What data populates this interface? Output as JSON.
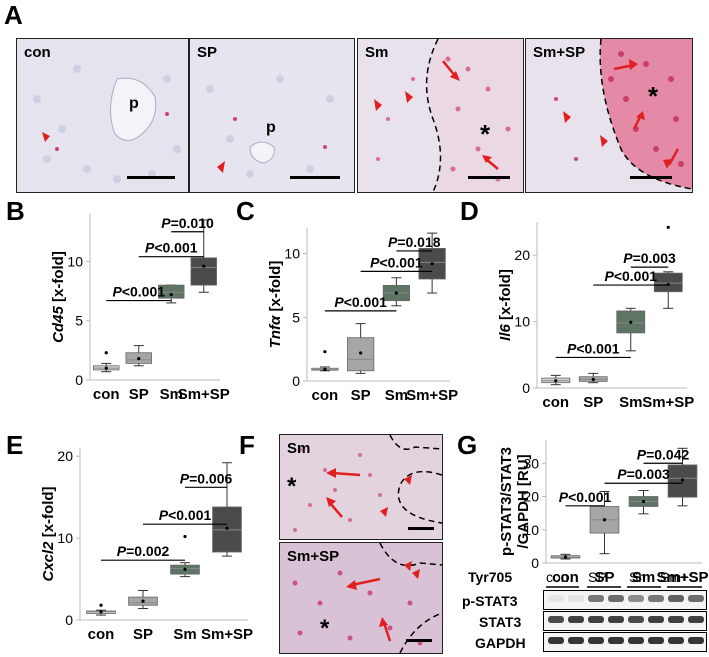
{
  "panel_letters": [
    "A",
    "B",
    "C",
    "D",
    "E",
    "F",
    "G"
  ],
  "panel_a": {
    "images": [
      {
        "label": "con",
        "inner_marks": [
          "p"
        ]
      },
      {
        "label": "SP",
        "inner_marks": [
          "p"
        ]
      },
      {
        "label": "Sm",
        "inner_marks": [
          "*"
        ]
      },
      {
        "label": "Sm+SP",
        "inner_marks": [
          "*"
        ]
      }
    ]
  },
  "panel_f": {
    "images": [
      {
        "label": "Sm",
        "inner_marks": [
          "*"
        ]
      },
      {
        "label": "Sm+SP",
        "inner_marks": [
          "*"
        ]
      }
    ]
  },
  "colors": {
    "box_con": "#d2d2d2",
    "box_sp": "#a6a6a6",
    "box_sm": "#5e7565",
    "box_smsp": "#4b4b4b",
    "arrow": "#e02020",
    "stain": "#d03060",
    "tissue": "#e6e4ef"
  },
  "chart_data": [
    {
      "panel": "B",
      "type": "box",
      "ylabel": "Cd45 [x-fold]",
      "ylim": [
        0,
        14
      ],
      "yticks": [
        0,
        5,
        10
      ],
      "categories": [
        "con",
        "SP",
        "Sm",
        "Sm+SP"
      ],
      "series": [
        {
          "category": "con",
          "min": 0.7,
          "q1": 0.85,
          "median": 1.0,
          "q3": 1.2,
          "max": 1.4,
          "mean": 1.0,
          "outliers": [
            2.3
          ]
        },
        {
          "category": "SP",
          "min": 1.2,
          "q1": 1.4,
          "median": 1.7,
          "q3": 2.3,
          "max": 2.9,
          "mean": 1.8,
          "outliers": []
        },
        {
          "category": "Sm",
          "min": 6.5,
          "q1": 6.9,
          "median": 7.4,
          "q3": 8.0,
          "max": 8.0,
          "mean": 7.2,
          "outliers": []
        },
        {
          "category": "Sm+SP",
          "min": 7.4,
          "q1": 8.0,
          "median": 9.5,
          "q3": 10.3,
          "max": 13.5,
          "mean": 9.6,
          "outliers": []
        }
      ],
      "comparisons": [
        {
          "text": "P=0.010",
          "from": 2,
          "to": 3,
          "y": 12.5
        },
        {
          "text": "P<0.001",
          "from": 1,
          "to": 3,
          "y": 10.4
        },
        {
          "text": "P<0.001",
          "from": 0,
          "to": 2,
          "y": 6.7
        }
      ]
    },
    {
      "panel": "C",
      "type": "box",
      "ylabel": "Tnfα [x-fold]",
      "ylim": [
        0,
        12
      ],
      "yticks": [
        0,
        5,
        10
      ],
      "categories": [
        "con",
        "SP",
        "Sm",
        "Sm+SP"
      ],
      "series": [
        {
          "category": "con",
          "min": 0.8,
          "q1": 0.85,
          "median": 0.9,
          "q3": 1.0,
          "max": 1.1,
          "mean": 0.9,
          "outliers": [
            2.3
          ]
        },
        {
          "category": "SP",
          "min": 0.6,
          "q1": 0.8,
          "median": 1.7,
          "q3": 3.4,
          "max": 4.5,
          "mean": 2.2,
          "outliers": []
        },
        {
          "category": "Sm",
          "min": 5.9,
          "q1": 6.3,
          "median": 6.9,
          "q3": 7.5,
          "max": 8.1,
          "mean": 6.9,
          "outliers": []
        },
        {
          "category": "Sm+SP",
          "min": 6.9,
          "q1": 8.0,
          "median": 9.3,
          "q3": 10.4,
          "max": 11.6,
          "mean": 9.2,
          "outliers": []
        }
      ],
      "comparisons": [
        {
          "text": "P=0.018",
          "from": 2,
          "to": 3,
          "y": 10.2
        },
        {
          "text": "P<0.001",
          "from": 1,
          "to": 3,
          "y": 8.6
        },
        {
          "text": "P<0.001",
          "from": 0,
          "to": 2,
          "y": 5.5
        }
      ]
    },
    {
      "panel": "D",
      "type": "box",
      "ylabel": "Il6 [x-fold]",
      "ylim": [
        0,
        25
      ],
      "yticks": [
        0,
        10,
        20
      ],
      "categories": [
        "con",
        "SP",
        "Sm",
        "Sm+SP"
      ],
      "series": [
        {
          "category": "con",
          "min": 0.5,
          "q1": 0.8,
          "median": 1.1,
          "q3": 1.5,
          "max": 1.9,
          "mean": 1.1,
          "outliers": []
        },
        {
          "category": "SP",
          "min": 0.8,
          "q1": 1.0,
          "median": 1.3,
          "q3": 1.7,
          "max": 2.2,
          "mean": 1.3,
          "outliers": []
        },
        {
          "category": "Sm",
          "min": 5.6,
          "q1": 8.3,
          "median": 9.8,
          "q3": 11.6,
          "max": 12.0,
          "mean": 9.9,
          "outliers": []
        },
        {
          "category": "Sm+SP",
          "min": 12.0,
          "q1": 14.5,
          "median": 15.8,
          "q3": 17.3,
          "max": 17.5,
          "mean": 15.6,
          "outliers": [
            24.2
          ]
        }
      ],
      "comparisons": [
        {
          "text": "P=0.003",
          "from": 2,
          "to": 3,
          "y": 18.2
        },
        {
          "text": "P<0.001",
          "from": 1,
          "to": 3,
          "y": 15.5
        },
        {
          "text": "P<0.001",
          "from": 0,
          "to": 2,
          "y": 4.6
        }
      ]
    },
    {
      "panel": "E",
      "type": "box",
      "ylabel": "Cxcl2 [x-fold]",
      "ylim": [
        0,
        21
      ],
      "yticks": [
        0,
        10,
        20
      ],
      "categories": [
        "con",
        "SP",
        "Sm",
        "Sm+SP"
      ],
      "series": [
        {
          "category": "con",
          "min": 0.6,
          "q1": 0.8,
          "median": 1.0,
          "q3": 1.1,
          "max": 1.2,
          "mean": 1.0,
          "outliers": [
            1.8
          ]
        },
        {
          "category": "SP",
          "min": 1.4,
          "q1": 1.8,
          "median": 2.1,
          "q3": 2.8,
          "max": 3.6,
          "mean": 2.3,
          "outliers": []
        },
        {
          "category": "Sm",
          "min": 5.3,
          "q1": 5.6,
          "median": 6.3,
          "q3": 6.7,
          "max": 7.0,
          "mean": 6.2,
          "outliers": [
            10.2
          ]
        },
        {
          "category": "Sm+SP",
          "min": 7.8,
          "q1": 8.3,
          "median": 11.0,
          "q3": 13.8,
          "max": 19.2,
          "mean": 11.2,
          "outliers": []
        }
      ],
      "comparisons": [
        {
          "text": "P=0.006",
          "from": 2,
          "to": 3,
          "y": 16.2
        },
        {
          "text": "P<0.001",
          "from": 1,
          "to": 3,
          "y": 11.7
        },
        {
          "text": "P=0.002",
          "from": 0,
          "to": 2,
          "y": 7.3
        }
      ]
    },
    {
      "panel": "G",
      "type": "box",
      "ylabel": "p-STAT3/STAT3 /GAPDH [RU]",
      "ylim": [
        0,
        37
      ],
      "yticks": [
        0,
        10,
        20,
        30
      ],
      "categories": [
        "con",
        "SP",
        "Sm",
        "Sm+SP"
      ],
      "series": [
        {
          "category": "con",
          "min": 1.2,
          "q1": 1.5,
          "median": 1.8,
          "q3": 2.2,
          "max": 2.6,
          "mean": 1.8,
          "outliers": []
        },
        {
          "category": "SP",
          "min": 2.8,
          "q1": 9.0,
          "median": 13.0,
          "q3": 17.0,
          "max": 21.5,
          "mean": 13.0,
          "outliers": []
        },
        {
          "category": "Sm",
          "min": 14.8,
          "q1": 17.0,
          "median": 18.5,
          "q3": 20.0,
          "max": 21.8,
          "mean": 18.5,
          "outliers": []
        },
        {
          "category": "Sm+SP",
          "min": 17.2,
          "q1": 19.8,
          "median": 25.5,
          "q3": 29.5,
          "max": 34.5,
          "mean": 25.0,
          "outliers": []
        }
      ],
      "comparisons": [
        {
          "text": "P=0.042",
          "from": 2,
          "to": 3,
          "y": 30.0
        },
        {
          "text": "P=0.003",
          "from": 1,
          "to": 3,
          "y": 24.0
        },
        {
          "text": "P<0.001",
          "from": 0,
          "to": 1,
          "y": 17.2
        }
      ]
    }
  ],
  "blot": {
    "header": "Tyr705",
    "lane_groups": [
      "con",
      "SP",
      "Sm",
      "Sm+SP"
    ],
    "rows": [
      "p-STAT3",
      "STAT3",
      "GAPDH"
    ],
    "intensities": [
      [
        0.05,
        0.05,
        0.55,
        0.6,
        0.45,
        0.55,
        0.65,
        0.6
      ],
      [
        0.75,
        0.8,
        0.8,
        0.8,
        0.75,
        0.8,
        0.8,
        0.8
      ],
      [
        0.85,
        0.85,
        0.85,
        0.85,
        0.85,
        0.85,
        0.85,
        0.85
      ]
    ]
  }
}
